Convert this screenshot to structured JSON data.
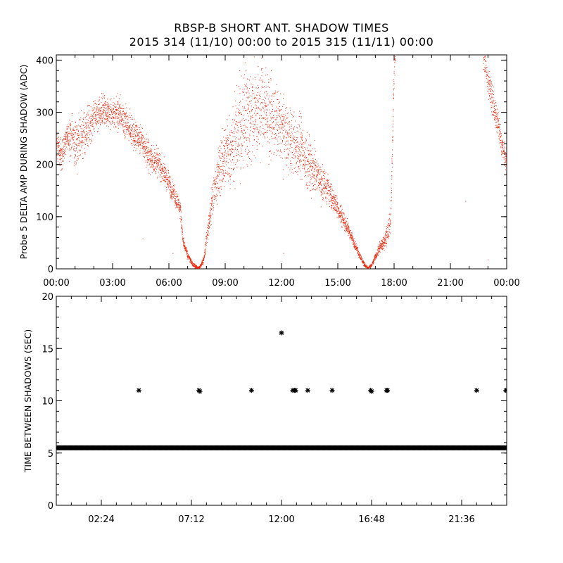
{
  "title": "RBSP-B SHORT ANT. SHADOW TIMES",
  "subtitle": "2015 314 (11/10) 00:00 to 2015 315 (11/11) 00:00",
  "chart_data": [
    {
      "type": "scatter",
      "ylabel": "Probe 5 DELTA AMP DURING SHADOW (ADC)",
      "xlim": [
        0,
        24
      ],
      "ylim": [
        0,
        410
      ],
      "x_ticks": [
        0,
        3,
        6,
        9,
        12,
        15,
        18,
        21,
        24
      ],
      "x_tick_labels": [
        "00:00",
        "03:00",
        "06:00",
        "09:00",
        "12:00",
        "15:00",
        "18:00",
        "21:00",
        "00:00"
      ],
      "y_ticks": [
        0,
        100,
        200,
        300,
        400
      ],
      "y_tick_labels": [
        "0",
        "100",
        "200",
        "300",
        "400"
      ],
      "marker_color": "#e8270a",
      "grid": false,
      "series": [
        {
          "x_hours": [
            0.0,
            0.25,
            0.5,
            0.75,
            1.0,
            1.5,
            2.0,
            2.5,
            3.0,
            3.5,
            4.0,
            4.5,
            5.0,
            5.5,
            6.0,
            6.3,
            6.6,
            6.75,
            6.85,
            7.0,
            7.2,
            7.4,
            7.55,
            7.7,
            7.85,
            8.0,
            8.2,
            8.5,
            9.0,
            9.5,
            10.0,
            10.5,
            11.0,
            11.5,
            12.0,
            12.5,
            13.0,
            13.5,
            14.0,
            14.5,
            15.0,
            15.5,
            15.8,
            16.1,
            16.3,
            16.5,
            16.6,
            16.8,
            17.0,
            17.2,
            17.5,
            17.8,
            18.0,
            22.8,
            23.0,
            23.3,
            23.6,
            23.8,
            24.0
          ],
          "y_adc": [
            240,
            215,
            250,
            260,
            240,
            260,
            290,
            300,
            300,
            295,
            265,
            245,
            215,
            200,
            165,
            140,
            115,
            50,
            40,
            25,
            12,
            5,
            2,
            8,
            20,
            60,
            110,
            170,
            220,
            245,
            290,
            300,
            310,
            285,
            270,
            245,
            230,
            200,
            175,
            150,
            115,
            80,
            55,
            30,
            15,
            5,
            2,
            8,
            25,
            40,
            55,
            90,
            400,
            400,
            360,
            310,
            265,
            230,
            200
          ],
          "spread": [
            45,
            40,
            35,
            60,
            70,
            60,
            50,
            45,
            45,
            45,
            40,
            40,
            40,
            40,
            35,
            30,
            25,
            15,
            12,
            10,
            8,
            5,
            3,
            5,
            10,
            25,
            45,
            70,
            90,
            120,
            160,
            150,
            120,
            100,
            100,
            90,
            85,
            75,
            60,
            40,
            30,
            20,
            15,
            10,
            8,
            4,
            3,
            5,
            10,
            15,
            20,
            40,
            40,
            40,
            45,
            45,
            40,
            35,
            30
          ]
        }
      ]
    },
    {
      "type": "scatter",
      "ylabel": "TIME BETWEEN SHADOWS (SEC)",
      "xlim": [
        0,
        24
      ],
      "ylim": [
        0,
        20
      ],
      "x_ticks": [
        2.4,
        7.2,
        12.0,
        16.8,
        21.6
      ],
      "x_tick_labels": [
        "02:24",
        "07:12",
        "12:00",
        "16:48",
        "21:36"
      ],
      "y_ticks": [
        0,
        5,
        10,
        15,
        20
      ],
      "y_tick_labels": [
        "0",
        "5",
        "10",
        "15",
        "20"
      ],
      "marker": "asterisk",
      "marker_color": "#000000",
      "grid": false,
      "baseline_series": {
        "x_from": 0.05,
        "x_to": 24.0,
        "y": 5.5,
        "step_hours": 0.04
      },
      "points": [
        {
          "x": 4.4,
          "y": 11.0
        },
        {
          "x": 7.6,
          "y": 11.0
        },
        {
          "x": 7.65,
          "y": 10.9
        },
        {
          "x": 10.4,
          "y": 11.0
        },
        {
          "x": 12.0,
          "y": 16.5
        },
        {
          "x": 12.6,
          "y": 11.0
        },
        {
          "x": 12.7,
          "y": 11.0
        },
        {
          "x": 12.75,
          "y": 11.0
        },
        {
          "x": 13.4,
          "y": 11.0
        },
        {
          "x": 14.7,
          "y": 11.0
        },
        {
          "x": 16.75,
          "y": 11.0
        },
        {
          "x": 16.8,
          "y": 10.9
        },
        {
          "x": 17.6,
          "y": 11.0
        },
        {
          "x": 17.65,
          "y": 11.0
        },
        {
          "x": 22.4,
          "y": 11.0
        },
        {
          "x": 23.95,
          "y": 11.0
        }
      ]
    }
  ]
}
